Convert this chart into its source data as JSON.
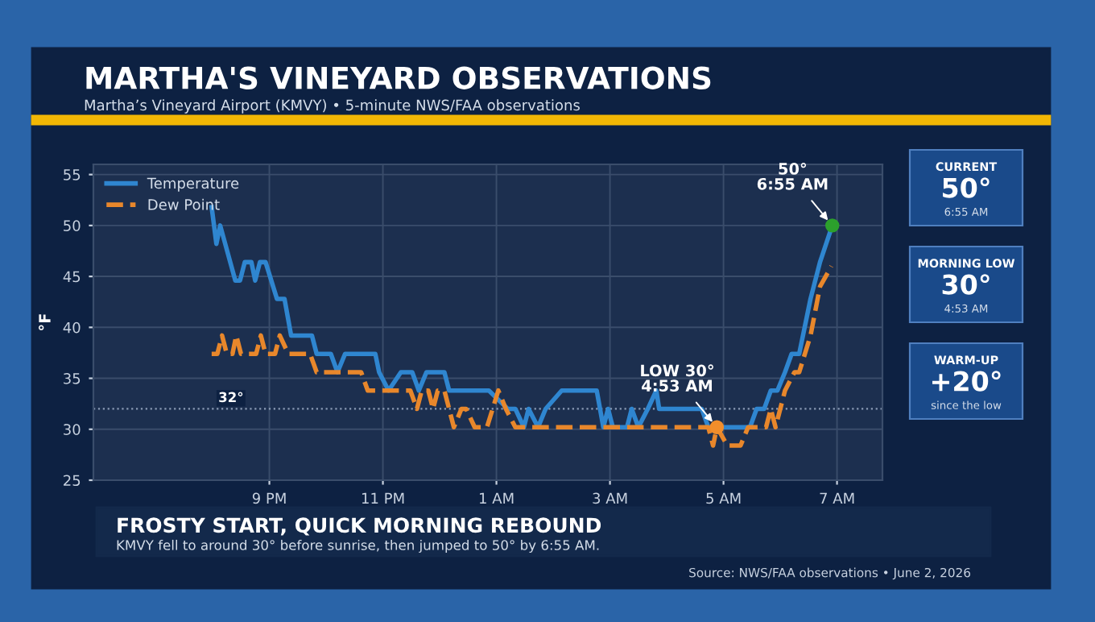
{
  "chart_data": [
    {
      "type": "line",
      "title": "MARTHA'S VINEYARD OBSERVATIONS",
      "subtitle": "Martha’s Vineyard Airport (KMVY) • 5-minute NWS/FAA observations",
      "ylabel": "°F",
      "xlim": [
        "2026-06-01T17:54",
        "2026-06-02T07:48"
      ],
      "ylim": [
        25,
        56
      ],
      "xticks": [
        {
          "value": "2026-06-01T21:00",
          "label": "9 PM"
        },
        {
          "value": "2026-06-01T23:00",
          "label": "11 PM"
        },
        {
          "value": "2026-06-02T01:00",
          "label": "1 AM"
        },
        {
          "value": "2026-06-02T03:00",
          "label": "3 AM"
        },
        {
          "value": "2026-06-02T05:00",
          "label": "5 AM"
        },
        {
          "value": "2026-06-02T07:00",
          "label": "7 AM"
        }
      ],
      "yticks": [
        25,
        30,
        35,
        40,
        45,
        50,
        55
      ],
      "grid": true,
      "legend": "top left",
      "marker": "none",
      "series": [
        {
          "name": "Temperature",
          "color": "#2f86d0",
          "line_style": "solid",
          "x": [
            "2026-06-01T19:59",
            "2026-06-01T20:04",
            "2026-06-01T20:08",
            "2026-06-01T20:24",
            "2026-06-01T20:29",
            "2026-06-01T20:34",
            "2026-06-01T20:41",
            "2026-06-01T20:45",
            "2026-06-01T20:50",
            "2026-06-01T20:56",
            "2026-06-01T21:08",
            "2026-06-01T21:16",
            "2026-06-01T21:23",
            "2026-06-01T21:45",
            "2026-06-01T21:50",
            "2026-06-01T21:55",
            "2026-06-01T22:05",
            "2026-06-01T22:12",
            "2026-06-01T22:20",
            "2026-06-01T22:52",
            "2026-06-01T22:56",
            "2026-06-01T23:06",
            "2026-06-01T23:19",
            "2026-06-01T23:31",
            "2026-06-01T23:38",
            "2026-06-01T23:46",
            "2026-06-01T23:56",
            "2026-06-02T00:05",
            "2026-06-02T00:10",
            "2026-06-02T00:52",
            "2026-06-02T01:12",
            "2026-06-02T01:20",
            "2026-06-02T01:29",
            "2026-06-02T01:34",
            "2026-06-02T01:44",
            "2026-06-02T01:52",
            "2026-06-02T02:09",
            "2026-06-02T02:46",
            "2026-06-02T02:53",
            "2026-06-02T02:58",
            "2026-06-02T03:03",
            "2026-06-02T03:18",
            "2026-06-02T03:23",
            "2026-06-02T03:30",
            "2026-06-02T03:40",
            "2026-06-02T03:49",
            "2026-06-02T03:52",
            "2026-06-02T04:37",
            "2026-06-02T04:44",
            "2026-06-02T04:53",
            "2026-06-02T05:28",
            "2026-06-02T05:35",
            "2026-06-02T05:43",
            "2026-06-02T05:50",
            "2026-06-02T05:57",
            "2026-06-02T06:05",
            "2026-06-02T06:12",
            "2026-06-02T06:20",
            "2026-06-02T06:32",
            "2026-06-02T06:42",
            "2026-06-02T06:55"
          ],
          "values": [
            51.8,
            48.2,
            50,
            44.6,
            44.6,
            46.4,
            46.4,
            44.6,
            46.4,
            46.4,
            42.8,
            42.8,
            39.2,
            39.2,
            37.4,
            37.4,
            37.4,
            35.6,
            37.4,
            37.4,
            35.6,
            33.8,
            35.6,
            35.6,
            33.8,
            35.6,
            35.6,
            35.6,
            33.8,
            33.8,
            32,
            32,
            30.2,
            32,
            30.2,
            32,
            33.8,
            33.8,
            30.2,
            32,
            30.2,
            30.2,
            32,
            30.2,
            32,
            33.8,
            32,
            32,
            30.2,
            30.2,
            30.2,
            32,
            32,
            33.8,
            33.8,
            35.6,
            37.4,
            37.4,
            42.8,
            46.4,
            50
          ]
        },
        {
          "name": "Dew Point",
          "color": "#e8872b",
          "line_style": "dashed",
          "x": [
            "2026-06-01T19:59",
            "2026-06-01T20:05",
            "2026-06-01T20:10",
            "2026-06-01T20:15",
            "2026-06-01T20:21",
            "2026-06-01T20:25",
            "2026-06-01T20:30",
            "2026-06-01T20:46",
            "2026-06-01T20:51",
            "2026-06-01T20:56",
            "2026-06-01T21:06",
            "2026-06-01T21:11",
            "2026-06-01T21:20",
            "2026-06-01T21:43",
            "2026-06-01T21:50",
            "2026-06-01T22:37",
            "2026-06-01T22:44",
            "2026-06-01T23:29",
            "2026-06-01T23:36",
            "2026-06-01T23:41",
            "2026-06-01T23:48",
            "2026-06-01T23:53",
            "2026-06-01T23:58",
            "2026-06-02T00:05",
            "2026-06-02T00:10",
            "2026-06-02T00:15",
            "2026-06-02T00:23",
            "2026-06-02T00:28",
            "2026-06-02T00:37",
            "2026-06-02T00:50",
            "2026-06-02T01:02",
            "2026-06-02T01:10",
            "2026-06-02T01:20",
            "2026-06-02T04:44",
            "2026-06-02T04:49",
            "2026-06-02T04:53",
            "2026-06-02T05:04",
            "2026-06-02T05:18",
            "2026-06-02T05:26",
            "2026-06-02T05:45",
            "2026-06-02T05:50",
            "2026-06-02T05:55",
            "2026-06-02T06:05",
            "2026-06-02T06:15",
            "2026-06-02T06:20",
            "2026-06-02T06:32",
            "2026-06-02T06:42",
            "2026-06-02T06:54"
          ],
          "values": [
            37.4,
            37.4,
            39.2,
            37.4,
            37.4,
            39.2,
            37.4,
            37.4,
            39.2,
            37.4,
            37.4,
            39.2,
            37.4,
            37.4,
            35.6,
            35.6,
            33.8,
            33.8,
            32,
            33.8,
            33.8,
            32,
            33.8,
            33.8,
            32,
            30.2,
            32,
            32,
            30.2,
            30.2,
            33.8,
            32,
            30.2,
            30.2,
            28.4,
            30.2,
            28.4,
            28.4,
            30.2,
            30.2,
            32,
            30.2,
            33.8,
            35.6,
            35.6,
            39.2,
            44,
            46
          ]
        },
        {
          "type": "scatter",
          "marker": "circle",
          "color": "#f28e2b",
          "x": [
            "2026-06-02T04:53"
          ],
          "values": [
            30.2
          ]
        },
        {
          "type": "scatter",
          "marker": "circle",
          "color": "#2ca02c",
          "x": [
            "2026-06-02T06:55"
          ],
          "values": [
            50
          ]
        }
      ],
      "ref_lines": [
        {
          "axis": "y",
          "value": 32,
          "label": "32°",
          "line_style": "dotted",
          "color": "#8a9bb5"
        }
      ],
      "annotations": [
        {
          "text": "LOW 30°\n4:53 AM",
          "x": "2026-06-02T04:53",
          "y": 30.2
        },
        {
          "text": "50°\n6:55 AM",
          "x": "2026-06-02T06:55",
          "y": 50
        },
        "FROSTY START, QUICK MORNING REBOUND",
        "KMVY fell to around 30° before sunrise, then jumped to 50° by 6:55 AM.",
        "Source: NWS/FAA observations • June 2, 2026"
      ]
    },
    {
      "type": "other",
      "annotations": [
        "CURRENT",
        "50°",
        "6:55 AM",
        "MORNING LOW",
        "30°",
        "4:53 AM",
        "WARM-UP",
        "+20°",
        "since the low"
      ]
    }
  ]
}
